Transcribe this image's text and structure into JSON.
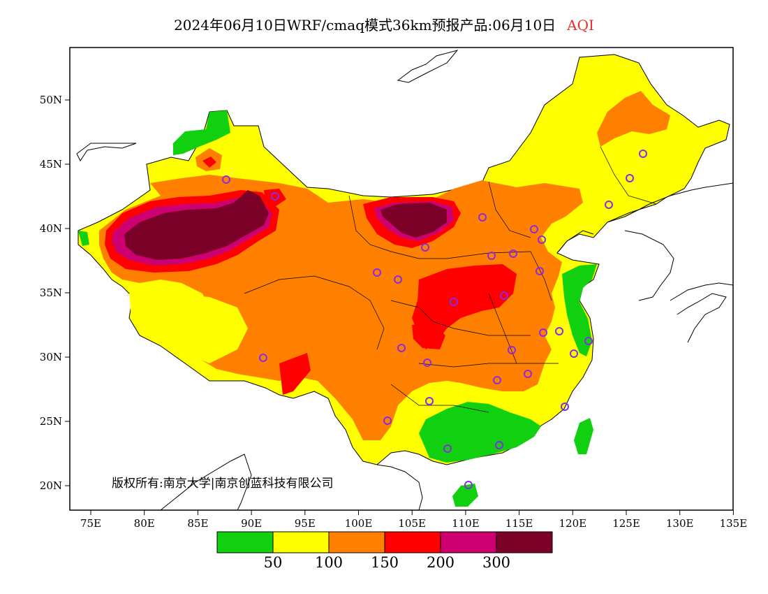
{
  "title": {
    "main": "2024年06月10日WRF/cmaq模式36km预报产品:06月10日",
    "variable": "AQI",
    "variable_color": "#e8302a"
  },
  "axes": {
    "x_labels": [
      "75E",
      "80E",
      "85E",
      "90E",
      "95E",
      "100E",
      "105E",
      "110E",
      "115E",
      "120E",
      "125E",
      "130E",
      "135E"
    ],
    "y_labels": [
      "50N",
      "45N",
      "40N",
      "35N",
      "30N",
      "25N",
      "20N"
    ]
  },
  "copyright": "版权所有:南京大学|南京创蓝科技有限公司",
  "colorbar": {
    "colors": [
      "#10d010",
      "#ffff00",
      "#ff8000",
      "#ff0000",
      "#cc0070",
      "#7a0028"
    ],
    "thresholds": [
      "50",
      "100",
      "150",
      "200",
      "300"
    ]
  },
  "stations_count_note": "",
  "map_colors": {
    "good": "#10d010",
    "moderate": "#ffff00",
    "sensitive": "#ff8000",
    "unhealthy": "#ff0000",
    "very_unhealthy": "#cc0070",
    "hazardous": "#7a0028",
    "station": "#8a2be2"
  }
}
